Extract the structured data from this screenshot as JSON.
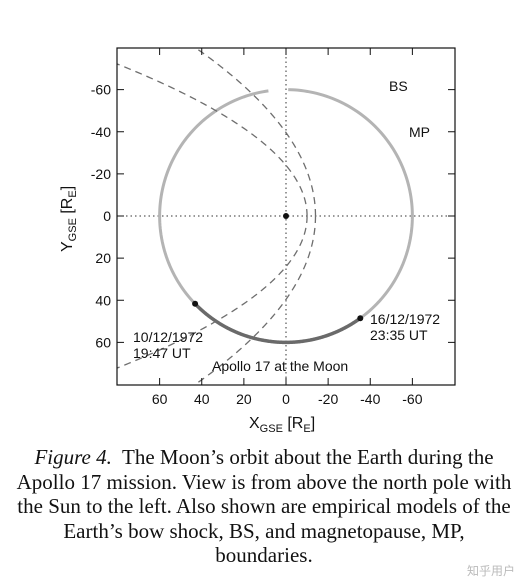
{
  "chart_data": {
    "type": "line",
    "x_range": [
      80,
      -80
    ],
    "y_range": [
      -80,
      80
    ],
    "x_ticks": [
      60,
      40,
      20,
      0,
      -20,
      -40,
      -60
    ],
    "x_tick_labels": [
      "60",
      "40",
      "20",
      "0",
      "-20",
      "-40",
      "-60"
    ],
    "y_ticks": [
      -60,
      -40,
      -20,
      0,
      20,
      40,
      60
    ],
    "y_tick_labels": [
      "-60",
      "-40",
      "-20",
      "0",
      "20",
      "40",
      "60"
    ],
    "xlabel": {
      "main": "X",
      "sub": "GSE",
      "unit_main": "R",
      "unit_sub": "E"
    },
    "ylabel": {
      "main": "Y",
      "sub": "GSE",
      "unit_main": "R",
      "unit_sub": "E"
    },
    "moon_orbit_radius": 60,
    "orbit_gap_start_deg": -91,
    "orbit_gap_end_deg": -82,
    "mission_arc_start_deg": 126,
    "mission_arc_end_deg": 44,
    "mission_start": {
      "label_line1": "10/12/1972",
      "label_line2": "19:47 UT"
    },
    "mission_end": {
      "label_line1": "16/12/1972",
      "label_line2": "23:35 UT"
    },
    "bow_shock": {
      "name": "BS",
      "standoff": 14,
      "flare_half_width": 28
    },
    "magnetopause": {
      "name": "MP",
      "standoff": 10,
      "flare_half_width": 17
    },
    "annotation": "Apollo 17 at the Moon"
  },
  "caption": {
    "label": "Figure 4.",
    "text": "The Moon’s orbit about the Earth during the Apollo 17 mission.  View is from above the north pole with the Sun to the left.  Also shown are empirical models of the Earth’s bow shock, BS, and magnetopause, MP, boundaries."
  },
  "watermark": "知乎用户",
  "colors": {
    "orbit": "#b4b4b4",
    "mission_arc": "#6a6a6a",
    "boundaries": "#6e6e6e",
    "axis": "#111111"
  }
}
